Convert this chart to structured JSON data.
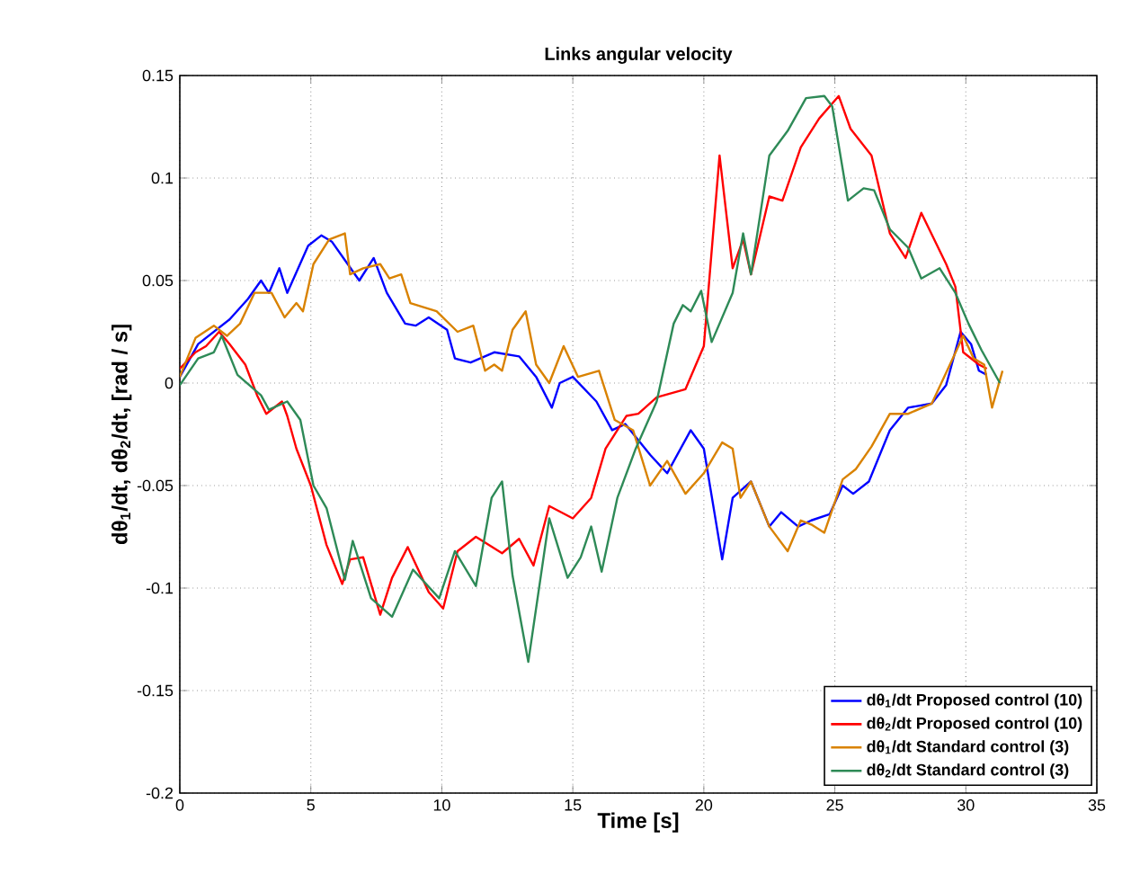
{
  "chart_data": {
    "type": "line",
    "title": "Links angular velocity",
    "xlabel": "Time [s]",
    "ylabel": "dθ$_{1}$/dt, dθ$_{2}$/dt, [rad / s]",
    "xlim": [
      0,
      35
    ],
    "xticks": [
      0,
      5,
      10,
      15,
      20,
      25,
      30,
      35
    ],
    "ylim": [
      -0.2,
      0.15
    ],
    "yticks": [
      -0.2,
      -0.15,
      -0.1,
      -0.05,
      0,
      0.05,
      0.1,
      0.15
    ],
    "grid": true,
    "legend": "bottom right",
    "marker": "none",
    "line_style": "solid",
    "series": [
      {
        "name": "dθ$_{1}$/dt Proposed control (10)",
        "color": "#0000ff",
        "x": [
          0,
          0.7,
          1.9,
          2.6,
          3.1,
          3.4,
          3.8,
          4.1,
          4.9,
          5.4,
          5.8,
          6.3,
          6.85,
          7.4,
          7.9,
          8.6,
          9,
          9.5,
          10.2,
          10.5,
          11.1,
          12.0,
          12.95,
          13.6,
          14.2,
          14.5,
          15,
          15.9,
          16.5,
          17.0,
          17.95,
          18.6,
          19.5,
          20,
          20.7,
          21.1,
          21.8,
          22.5,
          22.95,
          23.6,
          24.1,
          24.8,
          25.3,
          25.7,
          26.3,
          27.1,
          27.8,
          28.7,
          29.25,
          29.8,
          30.2,
          30.5,
          30.8
        ],
        "values": [
          0.003,
          0.019,
          0.031,
          0.041,
          0.05,
          0.044,
          0.056,
          0.044,
          0.067,
          0.072,
          0.069,
          0.06,
          0.05,
          0.061,
          0.044,
          0.029,
          0.028,
          0.032,
          0.026,
          0.012,
          0.01,
          0.015,
          0.013,
          0.003,
          -0.012,
          0,
          0.003,
          -0.009,
          -0.023,
          -0.02,
          -0.035,
          -0.044,
          -0.023,
          -0.032,
          -0.086,
          -0.056,
          -0.048,
          -0.07,
          -0.063,
          -0.07,
          -0.067,
          -0.064,
          -0.05,
          -0.054,
          -0.048,
          -0.023,
          -0.012,
          -0.01,
          -0.001,
          0.025,
          0.019,
          0.006,
          0.004
        ]
      },
      {
        "name": "dθ$_{2}$/dt Proposed control (10)",
        "color": "#ff0000",
        "x": [
          0,
          0.6,
          1.0,
          1.5,
          1.9,
          2.5,
          2.95,
          3.3,
          3.9,
          4.1,
          4.45,
          5.0,
          5.6,
          6.2,
          6.5,
          7.0,
          7.65,
          8.1,
          8.7,
          9.5,
          10.05,
          10.6,
          11.3,
          12.3,
          12.95,
          13.5,
          14.1,
          15,
          15.7,
          16.25,
          17.05,
          17.5,
          18.2,
          19.3,
          20,
          20.6,
          21.1,
          21.5,
          21.8,
          22.5,
          23.0,
          23.7,
          24.4,
          25.15,
          25.6,
          26.4,
          27.1,
          27.7,
          28.3,
          29.25,
          29.6,
          29.9,
          30.5,
          30.8
        ],
        "values": [
          0.007,
          0.015,
          0.018,
          0.025,
          0.019,
          0.009,
          -0.006,
          -0.015,
          -0.009,
          -0.016,
          -0.032,
          -0.05,
          -0.079,
          -0.098,
          -0.086,
          -0.085,
          -0.113,
          -0.095,
          -0.08,
          -0.102,
          -0.11,
          -0.082,
          -0.075,
          -0.083,
          -0.076,
          -0.089,
          -0.06,
          -0.066,
          -0.056,
          -0.032,
          -0.016,
          -0.015,
          -0.007,
          -0.003,
          0.018,
          0.111,
          0.056,
          0.07,
          0.053,
          0.091,
          0.089,
          0.115,
          0.129,
          0.14,
          0.124,
          0.111,
          0.073,
          0.061,
          0.083,
          0.058,
          0.047,
          0.015,
          0.009,
          0.007
        ]
      },
      {
        "name": "dθ$_{1}$/dt Standard control (3)",
        "color": "#d98200",
        "x": [
          0,
          0.6,
          1.3,
          1.8,
          2.3,
          2.85,
          3.5,
          4.0,
          4.45,
          4.7,
          5.1,
          5.7,
          6.3,
          6.5,
          7.0,
          7.65,
          8.0,
          8.45,
          8.8,
          9.8,
          10.6,
          11.2,
          11.65,
          12.0,
          12.3,
          12.7,
          13.2,
          13.6,
          14.1,
          14.65,
          15.2,
          16.0,
          16.6,
          17.3,
          17.95,
          18.6,
          19.3,
          20,
          20.7,
          21.1,
          21.4,
          21.8,
          22.5,
          23.2,
          23.7,
          24.1,
          24.6,
          25.3,
          25.8,
          26.4,
          27.1,
          27.8,
          28.7,
          29.5,
          29.9,
          30.3,
          30.7,
          31.0,
          31.4
        ],
        "values": [
          0.003,
          0.022,
          0.028,
          0.023,
          0.029,
          0.044,
          0.044,
          0.032,
          0.039,
          0.035,
          0.058,
          0.07,
          0.073,
          0.053,
          0.056,
          0.058,
          0.051,
          0.053,
          0.039,
          0.035,
          0.025,
          0.028,
          0.006,
          0.009,
          0.006,
          0.026,
          0.035,
          0.009,
          0,
          0.018,
          0.003,
          0.006,
          -0.018,
          -0.023,
          -0.05,
          -0.038,
          -0.054,
          -0.044,
          -0.029,
          -0.032,
          -0.056,
          -0.048,
          -0.07,
          -0.082,
          -0.067,
          -0.069,
          -0.073,
          -0.047,
          -0.042,
          -0.031,
          -0.015,
          -0.015,
          -0.01,
          0.012,
          0.023,
          0.012,
          0.009,
          -0.012,
          0.006
        ]
      },
      {
        "name": "dθ$_{2}$/dt Standard control (3)",
        "color": "#2e8a57",
        "x": [
          0,
          0.7,
          1.3,
          1.6,
          2.2,
          3.1,
          3.4,
          4.1,
          4.6,
          5.1,
          5.6,
          6.3,
          6.6,
          7.3,
          8.1,
          8.9,
          9.4,
          9.9,
          10.5,
          11.3,
          11.9,
          12.3,
          12.7,
          13.3,
          14.1,
          14.8,
          15.3,
          15.7,
          16.1,
          16.7,
          17.4,
          18.2,
          18.85,
          19.2,
          19.5,
          19.9,
          20.3,
          21.1,
          21.5,
          21.8,
          22.5,
          23.2,
          23.9,
          24.6,
          24.9,
          25.5,
          26.1,
          26.5,
          27.1,
          27.8,
          28.3,
          29.0,
          29.6,
          30.1,
          30.6,
          31.3
        ],
        "values": [
          -0.001,
          0.012,
          0.015,
          0.023,
          0.004,
          -0.006,
          -0.013,
          -0.009,
          -0.018,
          -0.05,
          -0.061,
          -0.096,
          -0.077,
          -0.105,
          -0.114,
          -0.091,
          -0.098,
          -0.105,
          -0.082,
          -0.099,
          -0.056,
          -0.048,
          -0.094,
          -0.136,
          -0.066,
          -0.095,
          -0.085,
          -0.07,
          -0.092,
          -0.056,
          -0.032,
          -0.009,
          0.029,
          0.038,
          0.035,
          0.045,
          0.02,
          0.044,
          0.073,
          0.053,
          0.111,
          0.123,
          0.139,
          0.14,
          0.135,
          0.089,
          0.095,
          0.094,
          0.075,
          0.066,
          0.051,
          0.056,
          0.044,
          0.029,
          0.016,
          0
        ]
      }
    ]
  }
}
